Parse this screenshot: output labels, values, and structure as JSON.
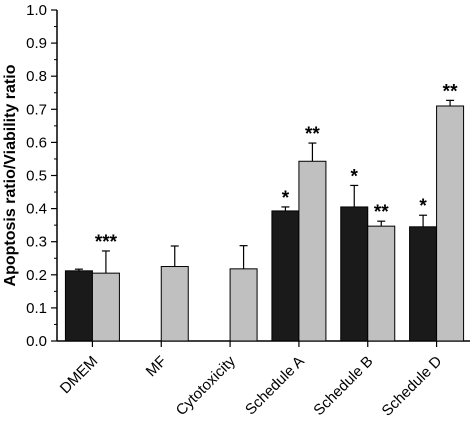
{
  "chart_data": {
    "type": "bar",
    "title": "",
    "xlabel": "",
    "ylabel": "Apoptosis ratio/Viability ratio",
    "ylim": [
      0,
      1.0
    ],
    "yticks": [
      "0.0",
      "0.1",
      "0.2",
      "0.3",
      "0.4",
      "0.5",
      "0.6",
      "0.7",
      "0.8",
      "0.9",
      "1.0"
    ],
    "categories": [
      "DMEM",
      "MF",
      "Cytotoxicity",
      "Schedule A",
      "Schedule B",
      "Schedule D"
    ],
    "series": [
      {
        "color": "#1a1a1a",
        "values": [
          0.212,
          null,
          null,
          0.393,
          0.405,
          0.345
        ],
        "errors": [
          0.005,
          null,
          null,
          0.012,
          0.065,
          0.035
        ],
        "annotations": [
          "",
          "",
          "",
          "*",
          "*",
          "*"
        ]
      },
      {
        "color": "#c0c0c0",
        "values": [
          0.205,
          0.225,
          0.218,
          0.543,
          0.347,
          0.71
        ],
        "errors": [
          0.067,
          0.062,
          0.07,
          0.055,
          0.015,
          0.017
        ],
        "annotations": [
          "***",
          "",
          "",
          "**",
          "**",
          "**"
        ]
      }
    ],
    "grid": false,
    "legend": "none"
  }
}
